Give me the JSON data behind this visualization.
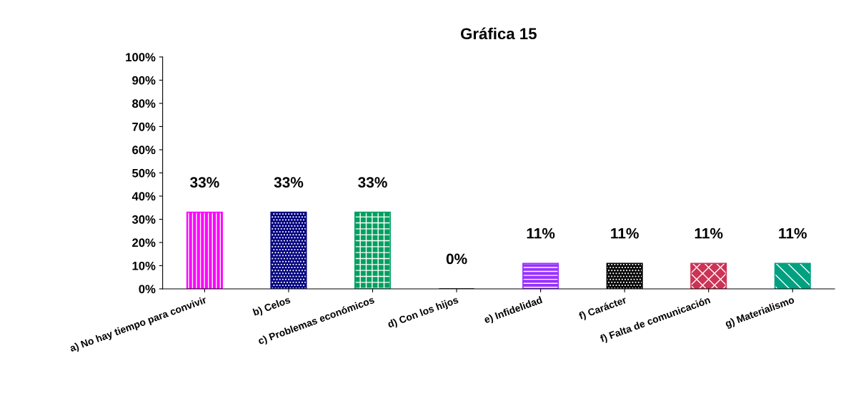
{
  "chart_data": {
    "type": "bar",
    "title": "Gráfica 15",
    "categories": [
      "a) No hay tiempo para convivir",
      "b) Celos",
      "c) Problemas económicos",
      "d) Con los hijos",
      "e) Infidelidad",
      "f) Carácter",
      "f) Falta de comunicación",
      "g) Materialismo"
    ],
    "values": [
      33,
      33,
      33,
      0,
      11,
      11,
      11,
      11
    ],
    "value_labels": [
      "33%",
      "33%",
      "33%",
      "0%",
      "11%",
      "11%",
      "11%",
      "11%"
    ],
    "colors": [
      "#ff00ff",
      "#000080",
      "#00a060",
      "#000000",
      "#9933ff",
      "#000000",
      "#cc3355",
      "#00a080"
    ],
    "ylim": [
      0,
      100
    ],
    "yticks": [
      {
        "value": 0,
        "label": "0%"
      },
      {
        "value": 10,
        "label": "10%"
      },
      {
        "value": 20,
        "label": "20%"
      },
      {
        "value": 30,
        "label": "30%"
      },
      {
        "value": 40,
        "label": "40%"
      },
      {
        "value": 50,
        "label": "50%"
      },
      {
        "value": 60,
        "label": "60%"
      },
      {
        "value": 70,
        "label": "70%"
      },
      {
        "value": 80,
        "label": "80%"
      },
      {
        "value": 90,
        "label": "90%"
      },
      {
        "value": 100,
        "label": "100%"
      }
    ],
    "grid": false,
    "legend": false
  }
}
